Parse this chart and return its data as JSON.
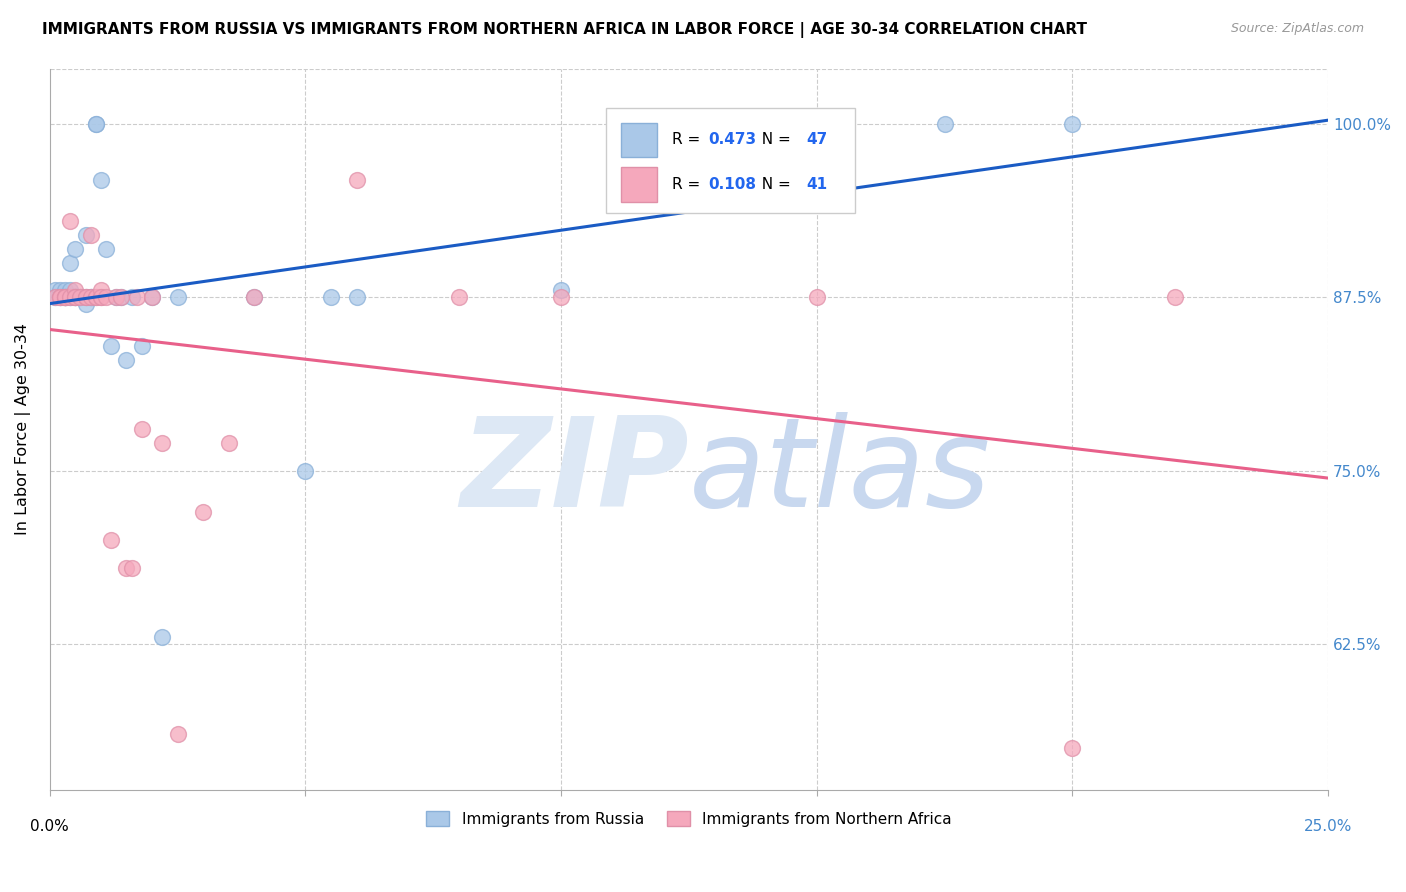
{
  "title": "IMMIGRANTS FROM RUSSIA VS IMMIGRANTS FROM NORTHERN AFRICA IN LABOR FORCE | AGE 30-34 CORRELATION CHART",
  "source": "Source: ZipAtlas.com",
  "ylabel": "In Labor Force | Age 30-34",
  "ytick_labels": [
    "100.0%",
    "87.5%",
    "75.0%",
    "62.5%"
  ],
  "ytick_values": [
    1.0,
    0.875,
    0.75,
    0.625
  ],
  "xlim": [
    0.0,
    0.25
  ],
  "ylim": [
    0.52,
    1.04
  ],
  "R_russia": 0.473,
  "N_russia": 47,
  "R_africa": 0.108,
  "N_africa": 41,
  "russia_x": [
    0.001,
    0.001,
    0.002,
    0.002,
    0.002,
    0.003,
    0.003,
    0.003,
    0.003,
    0.003,
    0.004,
    0.004,
    0.004,
    0.004,
    0.005,
    0.005,
    0.005,
    0.005,
    0.006,
    0.006,
    0.006,
    0.007,
    0.007,
    0.007,
    0.008,
    0.008,
    0.009,
    0.009,
    0.01,
    0.011,
    0.012,
    0.013,
    0.014,
    0.015,
    0.016,
    0.018,
    0.02,
    0.022,
    0.025,
    0.04,
    0.05,
    0.055,
    0.06,
    0.1,
    0.135,
    0.175,
    0.2
  ],
  "russia_y": [
    0.88,
    0.875,
    0.875,
    0.88,
    0.875,
    0.88,
    0.875,
    0.875,
    0.875,
    0.875,
    0.9,
    0.88,
    0.875,
    0.875,
    0.91,
    0.875,
    0.875,
    0.875,
    0.875,
    0.875,
    0.875,
    0.92,
    0.875,
    0.87,
    0.875,
    0.875,
    1.0,
    1.0,
    0.96,
    0.91,
    0.84,
    0.875,
    0.875,
    0.83,
    0.875,
    0.84,
    0.875,
    0.63,
    0.875,
    0.875,
    0.75,
    0.875,
    0.875,
    0.88,
    1.0,
    1.0,
    1.0
  ],
  "africa_x": [
    0.001,
    0.002,
    0.002,
    0.003,
    0.003,
    0.003,
    0.004,
    0.004,
    0.005,
    0.005,
    0.005,
    0.006,
    0.007,
    0.007,
    0.008,
    0.008,
    0.009,
    0.009,
    0.01,
    0.01,
    0.01,
    0.011,
    0.012,
    0.013,
    0.014,
    0.015,
    0.016,
    0.017,
    0.018,
    0.02,
    0.022,
    0.025,
    0.03,
    0.035,
    0.04,
    0.06,
    0.08,
    0.1,
    0.15,
    0.2,
    0.22
  ],
  "africa_y": [
    0.875,
    0.875,
    0.875,
    0.875,
    0.875,
    0.875,
    0.93,
    0.875,
    0.88,
    0.875,
    0.875,
    0.875,
    0.875,
    0.875,
    0.92,
    0.875,
    0.875,
    0.875,
    0.875,
    0.88,
    0.875,
    0.875,
    0.7,
    0.875,
    0.875,
    0.68,
    0.68,
    0.875,
    0.78,
    0.875,
    0.77,
    0.56,
    0.72,
    0.77,
    0.875,
    0.96,
    0.875,
    0.875,
    0.875,
    0.55,
    0.875
  ],
  "russia_color": "#aac8e8",
  "africa_color": "#f5a8bc",
  "russia_line_color": "#1a5bc4",
  "africa_line_color": "#e8608a",
  "watermark_zip": "ZIP",
  "watermark_atlas": "atlas",
  "watermark_color_zip": "#dde8f5",
  "watermark_color_atlas": "#c8d8ef",
  "watermark_fontsize": 90
}
